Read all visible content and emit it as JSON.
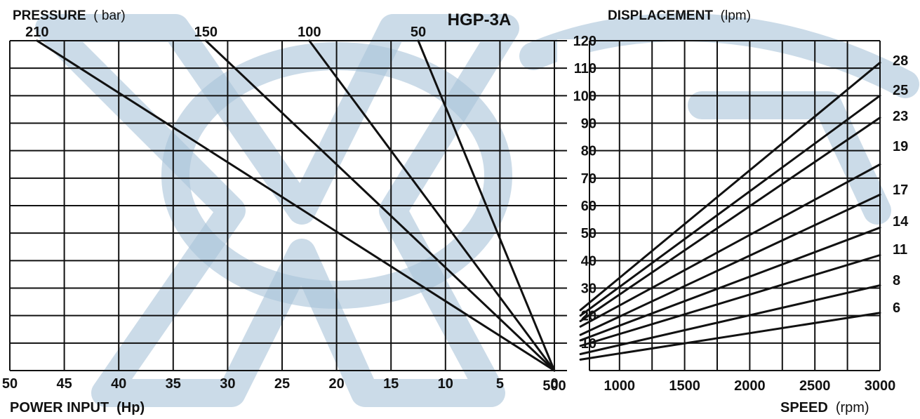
{
  "title": "HGP-3A",
  "colors": {
    "ink": "#111111",
    "watermark": "#a9c3d9",
    "background": "#ffffff"
  },
  "chart_data": [
    {
      "type": "line",
      "name": "power",
      "title": "HGP-3A",
      "series_title_prefix": "PRESSURE",
      "series_title_unit": "( bar)",
      "xlabel_prefix": "POWER INPUT",
      "xlabel_unit": "(Hp)",
      "x_ticks": [
        "50",
        "45",
        "40",
        "35",
        "30",
        "25",
        "20",
        "15",
        "10",
        "5",
        "0"
      ],
      "xlim": [
        50,
        0
      ],
      "y_scale": "displacement (lpm)",
      "grid": true,
      "series": [
        {
          "name": "210",
          "points": [
            [
              47.5,
              120
            ],
            [
              0,
              0
            ]
          ]
        },
        {
          "name": "150",
          "points": [
            [
              32,
              120
            ],
            [
              0,
              0
            ]
          ]
        },
        {
          "name": "100",
          "points": [
            [
              22.5,
              120
            ],
            [
              0,
              0
            ]
          ]
        },
        {
          "name": "50",
          "points": [
            [
              12.5,
              120
            ],
            [
              0,
              0
            ]
          ]
        }
      ]
    },
    {
      "type": "line",
      "name": "displacement",
      "ylabel_prefix": "DISPLACEMENT",
      "ylabel_unit": "(lpm)",
      "xlabel_prefix": "SPEED",
      "xlabel_unit": "(rpm)",
      "x_ticks": [
        "500",
        "1000",
        "1500",
        "2000",
        "2500",
        "3000"
      ],
      "y_ticks": [
        "10",
        "20",
        "30",
        "40",
        "50",
        "60",
        "70",
        "80",
        "90",
        "100",
        "110",
        "120"
      ],
      "xlim": [
        500,
        3000
      ],
      "ylim": [
        0,
        120
      ],
      "grid": true,
      "series": [
        {
          "name": "28",
          "points": [
            [
              700,
              22
            ],
            [
              3000,
              112
            ]
          ]
        },
        {
          "name": "25",
          "points": [
            [
              700,
              20
            ],
            [
              3000,
              100
            ]
          ]
        },
        {
          "name": "23",
          "points": [
            [
              700,
              18
            ],
            [
              3000,
              92
            ]
          ]
        },
        {
          "name": "19",
          "points": [
            [
              700,
              16
            ],
            [
              3000,
              75
            ]
          ]
        },
        {
          "name": "17",
          "points": [
            [
              700,
              13
            ],
            [
              3000,
              64
            ]
          ]
        },
        {
          "name": "14",
          "points": [
            [
              700,
              11
            ],
            [
              3000,
              52
            ]
          ]
        },
        {
          "name": "11",
          "points": [
            [
              700,
              9
            ],
            [
              3000,
              42
            ]
          ]
        },
        {
          "name": "8",
          "points": [
            [
              700,
              6
            ],
            [
              3000,
              31
            ]
          ]
        },
        {
          "name": "6",
          "points": [
            [
              700,
              4
            ],
            [
              3000,
              21
            ]
          ]
        }
      ]
    }
  ]
}
